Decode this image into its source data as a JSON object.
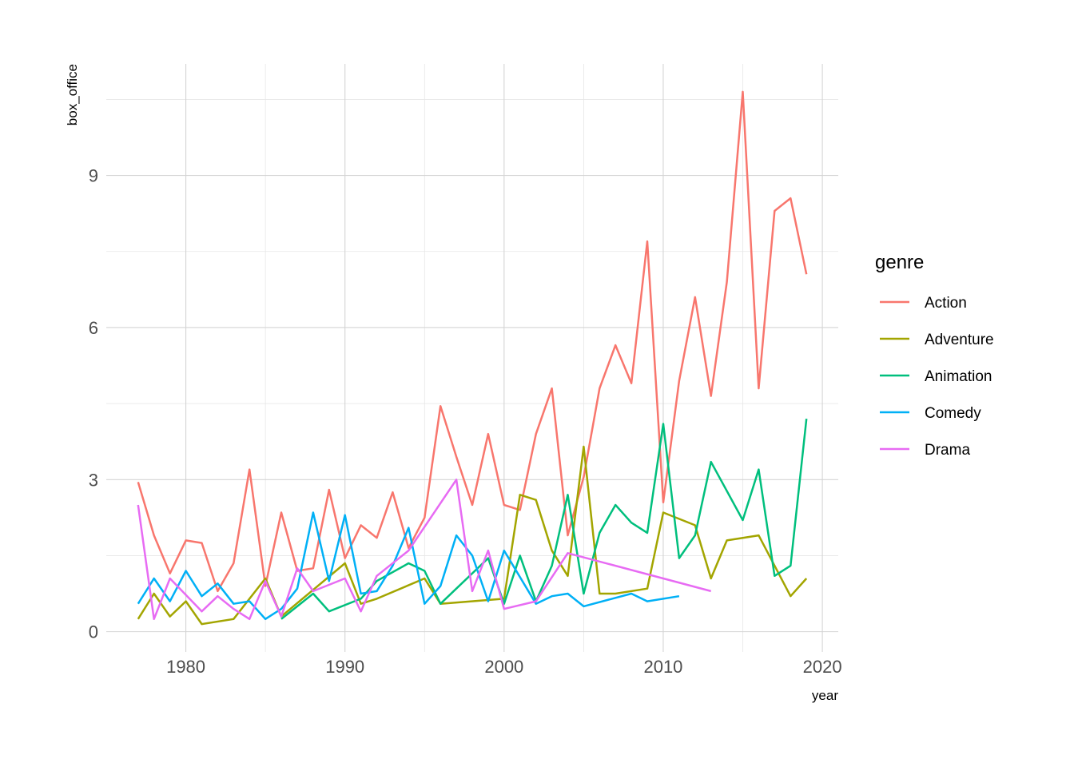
{
  "chart_data": {
    "type": "line",
    "xlabel": "year",
    "ylabel": "box_office",
    "xlim": [
      1975,
      2021
    ],
    "ylim": [
      -0.4,
      11.2
    ],
    "x_ticks": [
      1980,
      1990,
      2000,
      2010,
      2020
    ],
    "x_tick_labels": [
      "1980",
      "1990",
      "2000",
      "2010",
      "2020"
    ],
    "y_ticks": [
      0,
      3,
      6,
      9
    ],
    "y_tick_labels": [
      "0",
      "3",
      "6",
      "9"
    ],
    "grid": true,
    "legend": {
      "title": "genre",
      "position": "right"
    },
    "series": [
      {
        "name": "Action",
        "color": "#F8766D",
        "x": [
          1977,
          1978,
          1979,
          1980,
          1981,
          1982,
          1983,
          1984,
          1985,
          1986,
          1987,
          1988,
          1989,
          1990,
          1991,
          1992,
          1993,
          1994,
          1995,
          1996,
          1997,
          1998,
          1999,
          2000,
          2001,
          2002,
          2003,
          2004,
          2005,
          2006,
          2007,
          2008,
          2009,
          2010,
          2011,
          2012,
          2013,
          2014,
          2015,
          2016,
          2017,
          2018,
          2019
        ],
        "y": [
          2.95,
          1.9,
          1.15,
          1.8,
          1.75,
          0.8,
          1.35,
          3.2,
          0.9,
          2.35,
          1.2,
          1.25,
          2.8,
          1.45,
          2.1,
          1.85,
          2.75,
          1.65,
          2.25,
          4.45,
          3.45,
          2.5,
          3.9,
          2.5,
          2.4,
          3.9,
          4.8,
          1.9,
          3.05,
          4.8,
          5.65,
          4.9,
          7.7,
          2.55,
          4.95,
          6.6,
          4.65,
          6.9,
          10.65,
          4.8,
          8.3,
          8.55,
          7.05
        ]
      },
      {
        "name": "Adventure",
        "color": "#A3A500",
        "x": [
          1977,
          1978,
          1979,
          1980,
          1981,
          1983,
          1985,
          1986,
          1990,
          1991,
          1992,
          1995,
          1996,
          2000,
          2001,
          2002,
          2003,
          2004,
          2005,
          2006,
          2007,
          2009,
          2010,
          2012,
          2013,
          2014,
          2016,
          2018,
          2019
        ],
        "y": [
          0.25,
          0.75,
          0.3,
          0.6,
          0.15,
          0.25,
          1.05,
          0.3,
          1.35,
          0.55,
          0.65,
          1.05,
          0.55,
          0.65,
          2.7,
          2.6,
          1.6,
          1.1,
          3.65,
          0.75,
          0.75,
          0.85,
          2.35,
          2.1,
          1.05,
          1.8,
          1.9,
          0.7,
          1.05
        ]
      },
      {
        "name": "Animation",
        "color": "#00BF7D",
        "x": [
          1986,
          1988,
          1989,
          1991,
          1992,
          1994,
          1995,
          1996,
          1999,
          2000,
          2001,
          2002,
          2003,
          2004,
          2005,
          2006,
          2007,
          2008,
          2009,
          2010,
          2011,
          2012,
          2013,
          2015,
          2016,
          2017,
          2018,
          2019
        ],
        "y": [
          0.25,
          0.75,
          0.4,
          0.65,
          1.0,
          1.35,
          1.2,
          0.55,
          1.45,
          0.55,
          1.5,
          0.6,
          1.3,
          2.7,
          0.75,
          1.95,
          2.5,
          2.15,
          1.95,
          4.1,
          1.45,
          1.9,
          3.35,
          2.2,
          3.2,
          1.1,
          1.3,
          4.2
        ]
      },
      {
        "name": "Comedy",
        "color": "#00B0F6",
        "x": [
          1977,
          1978,
          1979,
          1980,
          1981,
          1982,
          1983,
          1984,
          1985,
          1986,
          1987,
          1988,
          1989,
          1990,
          1991,
          1992,
          1993,
          1994,
          1995,
          1996,
          1997,
          1998,
          1999,
          2000,
          2002,
          2003,
          2004,
          2005,
          2008,
          2009,
          2011
        ],
        "y": [
          0.55,
          1.05,
          0.6,
          1.2,
          0.7,
          0.95,
          0.55,
          0.6,
          0.25,
          0.45,
          0.85,
          2.35,
          1.0,
          2.3,
          0.75,
          0.8,
          1.3,
          2.05,
          0.55,
          0.9,
          1.9,
          1.5,
          0.6,
          1.6,
          0.55,
          0.7,
          0.75,
          0.5,
          0.75,
          0.6,
          0.7
        ]
      },
      {
        "name": "Drama",
        "color": "#E76BF3",
        "x": [
          1977,
          1978,
          1979,
          1981,
          1982,
          1983,
          1984,
          1985,
          1986,
          1987,
          1988,
          1990,
          1991,
          1992,
          1994,
          1997,
          1998,
          1999,
          2000,
          2002,
          2004,
          2013
        ],
        "y": [
          2.5,
          0.25,
          1.05,
          0.4,
          0.7,
          0.45,
          0.25,
          1.0,
          0.3,
          1.25,
          0.8,
          1.05,
          0.4,
          1.1,
          1.6,
          3.0,
          0.8,
          1.6,
          0.45,
          0.6,
          1.55,
          0.8
        ]
      }
    ]
  }
}
